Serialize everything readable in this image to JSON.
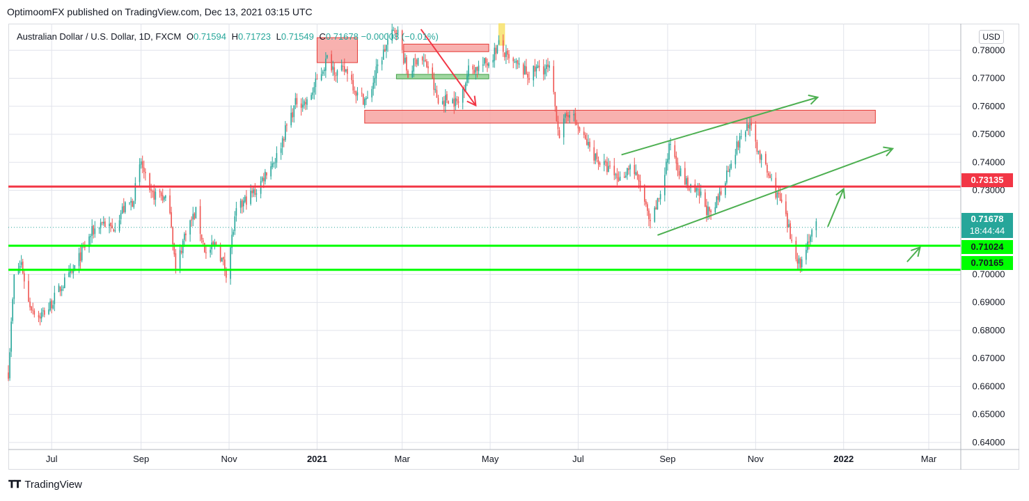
{
  "header": {
    "publisher": "OptimoomFX published on TradingView.com, Dec 13, 2021 03:15 UTC"
  },
  "legend": {
    "symbol": "Australian Dollar / U.S. Dollar, 1D, FXCM",
    "open_label": "O",
    "open": "0.71594",
    "high_label": "H",
    "high": "0.71723",
    "low_label": "L",
    "low": "0.71549",
    "close_label": "C",
    "close": "0.71678",
    "change": "−0.00008 (−0.01%)"
  },
  "currency_button": "USD",
  "price_tags": {
    "current_price": "0.71678",
    "countdown": "18:44:44",
    "resistance": "0.73135",
    "support_upper": "0.71024",
    "support_lower": "0.70165"
  },
  "footer": {
    "logo_text": "TradingView"
  },
  "colors": {
    "up": "#26a69a",
    "down": "#ef5350",
    "grid": "#e1e3eb",
    "resistance_line": "#f23645",
    "support_line": "#00ff00",
    "zone_red": "#f7a3a1",
    "zone_green": "#8fcf8f",
    "arrow_green": "#4caf50",
    "arrow_red": "#f23645",
    "highlight": "#f7e26b",
    "tag_current": "#26a69a"
  },
  "chart_data": {
    "type": "candlestick",
    "symbol": "AUDUSD",
    "timeframe": "1D",
    "y_axis": {
      "ticks": [
        "0.78000",
        "0.77000",
        "0.76000",
        "0.75000",
        "0.74000",
        "0.73000",
        "0.72000",
        "0.71000",
        "0.70000",
        "0.69000",
        "0.68000",
        "0.67000",
        "0.66000",
        "0.65000",
        "0.64000"
      ],
      "range": [
        0.6375,
        0.7895
      ]
    },
    "x_axis": {
      "ticks": [
        {
          "label": "Jul",
          "date": "2020-07-01",
          "bold": false
        },
        {
          "label": "Sep",
          "date": "2020-09-01",
          "bold": false
        },
        {
          "label": "Nov",
          "date": "2020-11-01",
          "bold": false
        },
        {
          "label": "2021",
          "date": "2021-01-01",
          "bold": true
        },
        {
          "label": "Mar",
          "date": "2021-03-01",
          "bold": false
        },
        {
          "label": "May",
          "date": "2021-05-01",
          "bold": false
        },
        {
          "label": "Jul",
          "date": "2021-07-01",
          "bold": false
        },
        {
          "label": "Sep",
          "date": "2021-09-01",
          "bold": false
        },
        {
          "label": "Nov",
          "date": "2021-11-01",
          "bold": false
        },
        {
          "label": "2022",
          "date": "2022-01-01",
          "bold": true
        },
        {
          "label": "Mar",
          "date": "2022-03-01",
          "bold": false
        }
      ]
    },
    "price_path": [
      [
        "2020-06-01",
        0.665
      ],
      [
        "2020-06-05",
        0.699
      ],
      [
        "2020-06-10",
        0.704
      ],
      [
        "2020-06-15",
        0.69
      ],
      [
        "2020-06-22",
        0.685
      ],
      [
        "2020-06-29",
        0.688
      ],
      [
        "2020-07-08",
        0.696
      ],
      [
        "2020-07-15",
        0.7
      ],
      [
        "2020-07-22",
        0.708
      ],
      [
        "2020-07-29",
        0.715
      ],
      [
        "2020-08-05",
        0.719
      ],
      [
        "2020-08-12",
        0.716
      ],
      [
        "2020-08-19",
        0.723
      ],
      [
        "2020-08-26",
        0.726
      ],
      [
        "2020-09-01",
        0.74
      ],
      [
        "2020-09-07",
        0.728
      ],
      [
        "2020-09-14",
        0.729
      ],
      [
        "2020-09-21",
        0.724
      ],
      [
        "2020-09-25",
        0.701
      ],
      [
        "2020-10-02",
        0.716
      ],
      [
        "2020-10-09",
        0.722
      ],
      [
        "2020-10-16",
        0.707
      ],
      [
        "2020-10-23",
        0.711
      ],
      [
        "2020-10-30",
        0.701
      ],
      [
        "2020-11-06",
        0.722
      ],
      [
        "2020-11-13",
        0.727
      ],
      [
        "2020-11-20",
        0.73
      ],
      [
        "2020-11-27",
        0.737
      ],
      [
        "2020-12-04",
        0.742
      ],
      [
        "2020-12-11",
        0.753
      ],
      [
        "2020-12-18",
        0.762
      ],
      [
        "2020-12-25",
        0.761
      ],
      [
        "2021-01-01",
        0.769
      ],
      [
        "2021-01-08",
        0.777
      ],
      [
        "2021-01-15",
        0.772
      ],
      [
        "2021-01-22",
        0.773
      ],
      [
        "2021-01-29",
        0.764
      ],
      [
        "2021-02-05",
        0.762
      ],
      [
        "2021-02-12",
        0.774
      ],
      [
        "2021-02-19",
        0.783
      ],
      [
        "2021-02-25",
        0.788
      ],
      [
        "2021-03-05",
        0.771
      ],
      [
        "2021-03-12",
        0.778
      ],
      [
        "2021-03-19",
        0.774
      ],
      [
        "2021-03-26",
        0.761
      ],
      [
        "2021-04-02",
        0.763
      ],
      [
        "2021-04-09",
        0.761
      ],
      [
        "2021-04-16",
        0.773
      ],
      [
        "2021-04-23",
        0.774
      ],
      [
        "2021-04-30",
        0.776
      ],
      [
        "2021-05-07",
        0.782
      ],
      [
        "2021-05-14",
        0.776
      ],
      [
        "2021-05-21",
        0.774
      ],
      [
        "2021-05-28",
        0.771
      ],
      [
        "2021-06-04",
        0.774
      ],
      [
        "2021-06-11",
        0.773
      ],
      [
        "2021-06-18",
        0.75
      ],
      [
        "2021-06-25",
        0.759
      ],
      [
        "2021-07-02",
        0.751
      ],
      [
        "2021-07-09",
        0.745
      ],
      [
        "2021-07-16",
        0.74
      ],
      [
        "2021-07-23",
        0.737
      ],
      [
        "2021-07-30",
        0.734
      ],
      [
        "2021-08-06",
        0.739
      ],
      [
        "2021-08-13",
        0.732
      ],
      [
        "2021-08-20",
        0.717
      ],
      [
        "2021-08-27",
        0.729
      ],
      [
        "2021-09-03",
        0.747
      ],
      [
        "2021-09-10",
        0.736
      ],
      [
        "2021-09-17",
        0.73
      ],
      [
        "2021-09-24",
        0.728
      ],
      [
        "2021-10-01",
        0.72
      ],
      [
        "2021-10-08",
        0.73
      ],
      [
        "2021-10-15",
        0.741
      ],
      [
        "2021-10-22",
        0.749
      ],
      [
        "2021-10-27",
        0.754
      ],
      [
        "2021-11-05",
        0.741
      ],
      [
        "2021-11-12",
        0.733
      ],
      [
        "2021-11-19",
        0.725
      ],
      [
        "2021-11-26",
        0.712
      ],
      [
        "2021-12-02",
        0.703
      ],
      [
        "2021-12-07",
        0.712
      ],
      [
        "2021-12-13",
        0.7168
      ]
    ],
    "horizontal_levels": [
      0.73135,
      0.71024,
      0.70165
    ],
    "zones": [
      {
        "from": "2021-01-01",
        "to": "2021-01-29",
        "low": 0.7756,
        "high": 0.7845,
        "color": "red"
      },
      {
        "from": "2021-03-02",
        "to": "2021-04-30",
        "low": 0.7795,
        "high": 0.7822,
        "color": "red"
      },
      {
        "from": "2021-02-25",
        "to": "2021-04-30",
        "low": 0.7698,
        "high": 0.7714,
        "color": "green"
      },
      {
        "from": "2021-02-03",
        "to": "2022-01-23",
        "low": 0.754,
        "high": 0.7586,
        "color": "red"
      },
      {
        "from": "2021-05-07",
        "to": "2021-05-11",
        "low": 0.7818,
        "high": 0.7895,
        "color": "yellow"
      }
    ],
    "channel": {
      "upper": [
        [
          "2021-07-31",
          0.7427
        ],
        [
          "2021-12-14",
          0.7632
        ]
      ],
      "lower": [
        [
          "2021-08-25",
          0.714
        ],
        [
          "2022-02-04",
          0.7449
        ]
      ]
    },
    "arrows": [
      {
        "color": "red",
        "from": [
          "2021-03-14",
          0.7875
        ],
        "to": [
          "2021-04-21",
          0.7603
        ]
      },
      {
        "color": "green",
        "from": [
          "2021-12-21",
          0.717
        ],
        "to": [
          "2022-01-01",
          0.7305
        ]
      },
      {
        "color": "green",
        "from": [
          "2022-02-14",
          0.7045
        ],
        "to": [
          "2022-02-23",
          0.7097
        ]
      }
    ]
  }
}
